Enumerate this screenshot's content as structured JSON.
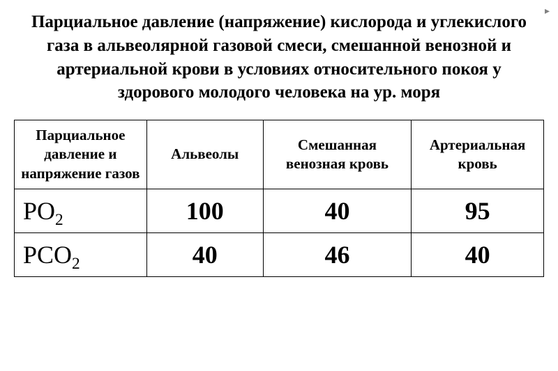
{
  "nav_arrow": "▸",
  "title": "Парциальное давление (напряжение) кислорода и углекислого газа в альвеолярной газовой смеси, смешанной венозной  и артериальной  крови в условиях относительного  покоя  у здорового молодого человека  на ур. моря",
  "table": {
    "headers": {
      "col1": "Парциальное давление и напряжение газов",
      "col2": "Альвеолы",
      "col3": "Смешанная венозная кровь",
      "col4": "Артериальная кровь"
    },
    "rows": [
      {
        "gas_prefix": "PO",
        "gas_sub": "2",
        "alveoli": "100",
        "venous": "40",
        "arterial": "95"
      },
      {
        "gas_prefix": "PCO",
        "gas_sub": "2",
        "alveoli": "40",
        "venous": "46",
        "arterial": "40"
      }
    ]
  },
  "style": {
    "background_color": "#ffffff",
    "text_color": "#000000",
    "border_color": "#000000",
    "title_fontsize": 25,
    "header_fontsize": 21,
    "cell_fontsize": 36,
    "font_family": "Times New Roman"
  }
}
